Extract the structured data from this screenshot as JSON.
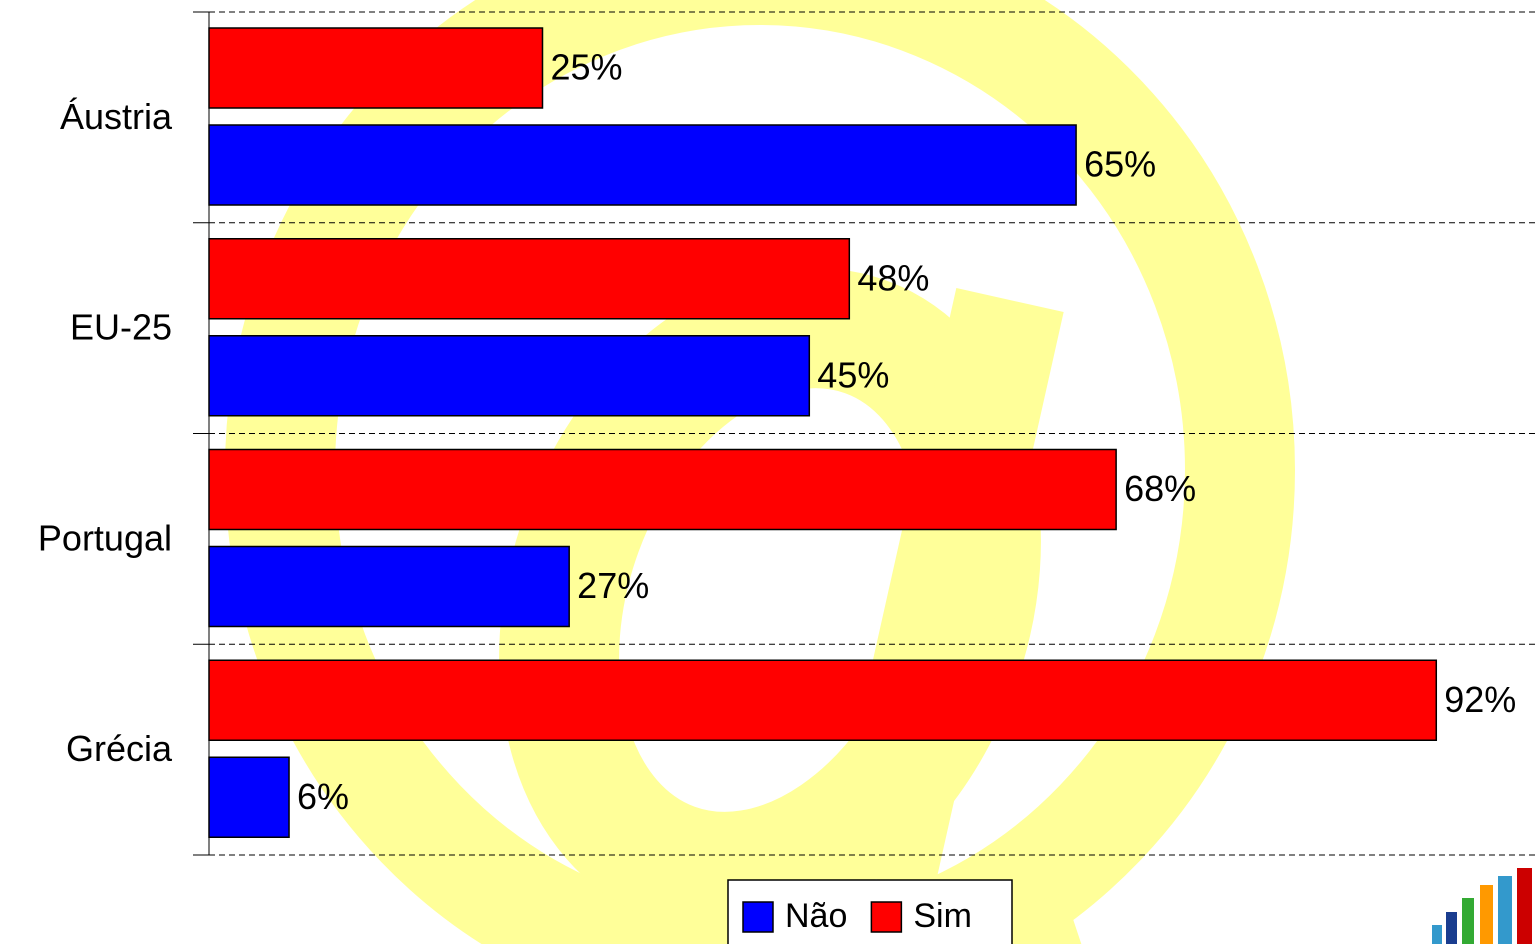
{
  "chart_data": {
    "type": "hbar",
    "categories": [
      "Áustria",
      "EU-25",
      "Portugal",
      "Grécia"
    ],
    "series": [
      {
        "name": "Não",
        "color": "#0000ff",
        "values": [
          65,
          45,
          27,
          6
        ],
        "value_labels": [
          "65%",
          "45%",
          "27%",
          "6%"
        ]
      },
      {
        "name": "Sim",
        "color": "#ff0000",
        "values": [
          25,
          48,
          68,
          92
        ],
        "value_labels": [
          "25%",
          "48%",
          "68%",
          "92%"
        ]
      }
    ],
    "xlim": [
      0,
      100
    ],
    "grid": true,
    "legend": "bottom"
  }
}
